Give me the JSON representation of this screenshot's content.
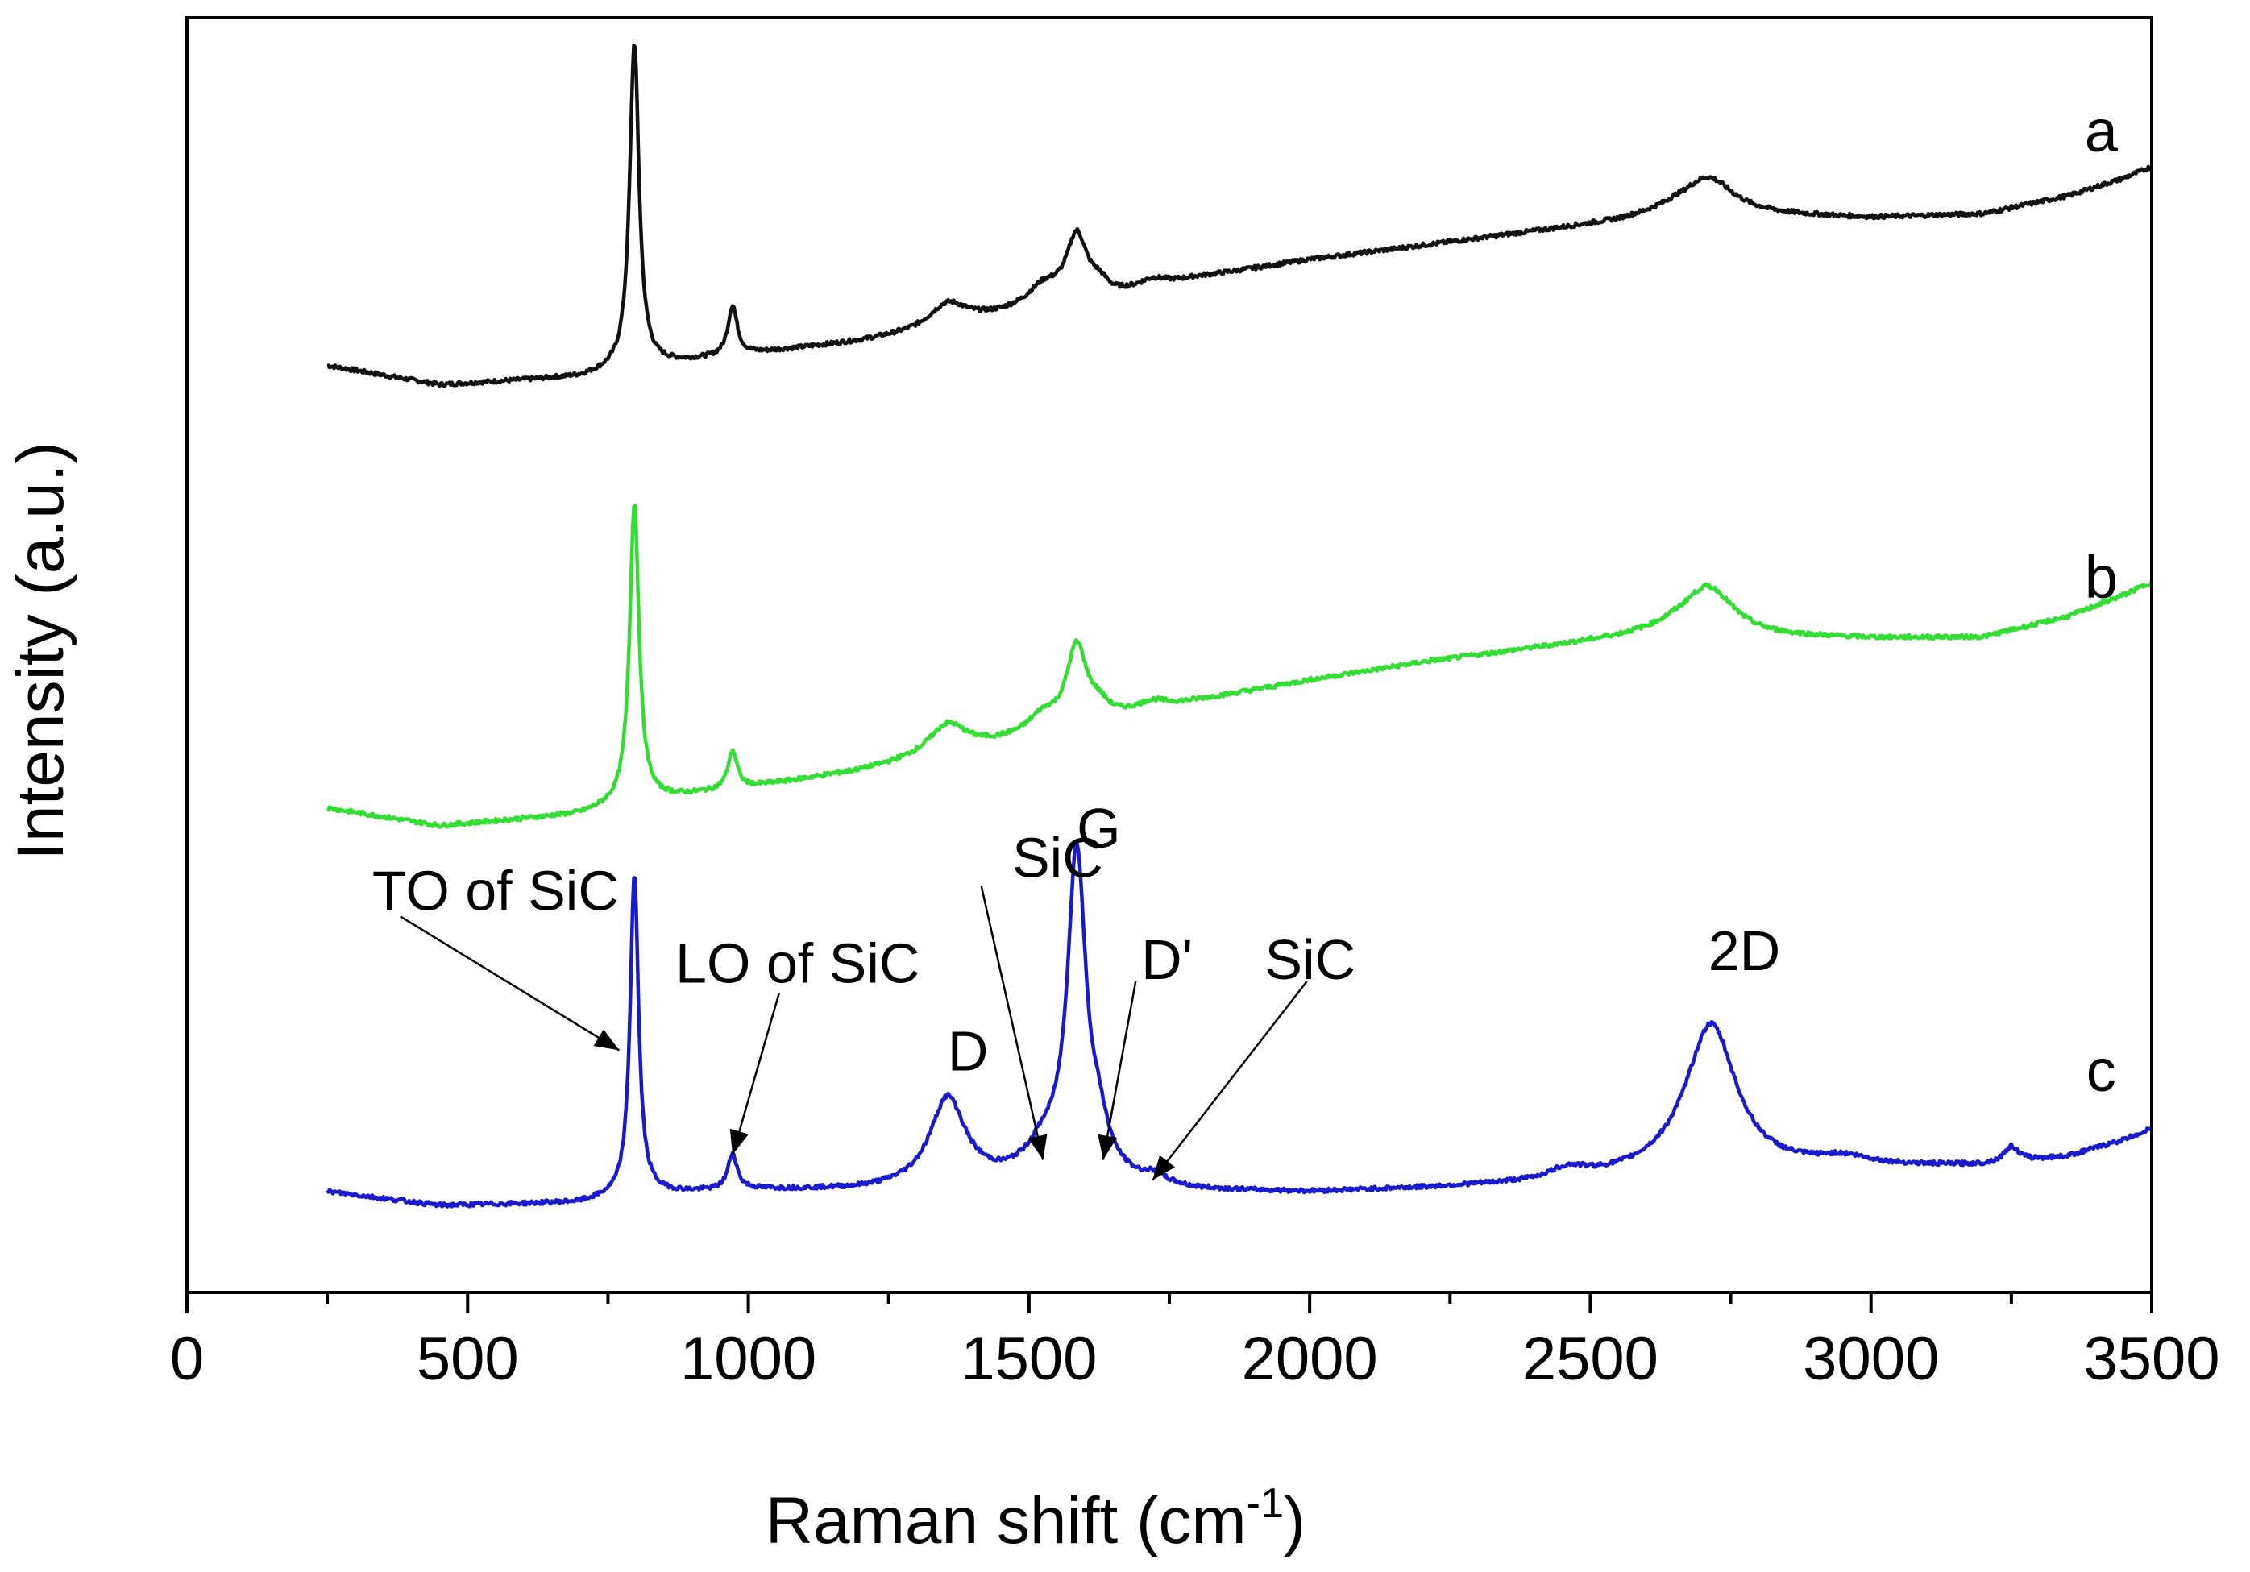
{
  "chart_data": {
    "type": "line",
    "title": "",
    "xlabel": "Raman shift (cm",
    "xlabel_sup": "-1",
    "xlabel_close": ")",
    "ylabel": "Intensity (a.u.)",
    "xlim": [
      0,
      3500
    ],
    "ylim": [
      0,
      100
    ],
    "x_ticks": [
      0,
      500,
      1000,
      1500,
      2000,
      2500,
      3000,
      3500
    ],
    "x_tick_labels": [
      "0",
      "500",
      "1000",
      "1500",
      "2000",
      "2500",
      "3000",
      "3500"
    ],
    "y_ticks_shown": false,
    "grid": false,
    "series": [
      {
        "name": "a",
        "color": "#111111",
        "baseline": [
          [
            250,
            72.7
          ],
          [
            450,
            71.2
          ],
          [
            700,
            71.8
          ],
          [
            790,
            72.5
          ],
          [
            1000,
            73.6
          ],
          [
            1200,
            74.6
          ],
          [
            1300,
            75.3
          ],
          [
            1450,
            76.7
          ],
          [
            1500,
            77.3
          ],
          [
            1550,
            77.8
          ],
          [
            1650,
            78.1
          ],
          [
            1700,
            78.6
          ],
          [
            1800,
            79.6
          ],
          [
            2000,
            81.0
          ],
          [
            2200,
            82.1
          ],
          [
            2400,
            83.2
          ],
          [
            2550,
            84.0
          ],
          [
            2650,
            84.8
          ],
          [
            2800,
            84.5
          ],
          [
            3000,
            84.3
          ],
          [
            3200,
            84.6
          ],
          [
            3350,
            86.0
          ],
          [
            3450,
            87.4
          ],
          [
            3500,
            88.3
          ]
        ],
        "peaks": [
          {
            "center": 797,
            "height": 25.5,
            "width": 10
          },
          {
            "center": 972,
            "height": 3.9,
            "width": 10
          },
          {
            "center": 1355,
            "height": 1.8,
            "width": 40
          },
          {
            "center": 1525,
            "height": 1.2,
            "width": 30
          },
          {
            "center": 1585,
            "height": 4.9,
            "width": 22
          },
          {
            "center": 1625,
            "height": 0.9,
            "width": 20
          },
          {
            "center": 1720,
            "height": 0.6,
            "width": 30
          },
          {
            "center": 2710,
            "height": 2.8,
            "width": 55
          }
        ]
      },
      {
        "name": "b",
        "color": "#33dd33",
        "baseline": [
          [
            250,
            38.0
          ],
          [
            450,
            36.6
          ],
          [
            700,
            37.5
          ],
          [
            790,
            38.4
          ],
          [
            1000,
            39.6
          ],
          [
            1200,
            40.9
          ],
          [
            1300,
            41.8
          ],
          [
            1450,
            43.1
          ],
          [
            1500,
            43.6
          ],
          [
            1550,
            44.0
          ],
          [
            1650,
            45.0
          ],
          [
            1700,
            45.5
          ],
          [
            1800,
            46.4
          ],
          [
            2000,
            48.0
          ],
          [
            2200,
            49.4
          ],
          [
            2400,
            50.5
          ],
          [
            2550,
            51.3
          ],
          [
            2650,
            51.9
          ],
          [
            2800,
            51.4
          ],
          [
            3000,
            51.3
          ],
          [
            3200,
            51.4
          ],
          [
            3350,
            53.0
          ],
          [
            3450,
            54.7
          ],
          [
            3500,
            55.7
          ]
        ],
        "peaks": [
          {
            "center": 797,
            "height": 23.5,
            "width": 10
          },
          {
            "center": 972,
            "height": 3.0,
            "width": 10
          },
          {
            "center": 1355,
            "height": 2.3,
            "width": 40
          },
          {
            "center": 1525,
            "height": 1.2,
            "width": 30
          },
          {
            "center": 1585,
            "height": 6.2,
            "width": 22
          },
          {
            "center": 1625,
            "height": 0.9,
            "width": 20
          },
          {
            "center": 1720,
            "height": 0.6,
            "width": 30
          },
          {
            "center": 2710,
            "height": 3.7,
            "width": 55
          }
        ]
      },
      {
        "name": "c",
        "color": "#1a1acc",
        "baseline": [
          [
            250,
            7.9
          ],
          [
            450,
            6.8
          ],
          [
            700,
            7.0
          ],
          [
            790,
            7.6
          ],
          [
            1000,
            8.0
          ],
          [
            1200,
            8.0
          ],
          [
            1300,
            8.2
          ],
          [
            1450,
            8.7
          ],
          [
            1500,
            9.2
          ],
          [
            1550,
            9.6
          ],
          [
            1650,
            8.8
          ],
          [
            1700,
            8.1
          ],
          [
            1800,
            7.9
          ],
          [
            2000,
            7.8
          ],
          [
            2200,
            8.1
          ],
          [
            2400,
            8.5
          ],
          [
            2550,
            9.0
          ],
          [
            2650,
            9.4
          ],
          [
            2800,
            9.4
          ],
          [
            3000,
            9.7
          ],
          [
            3200,
            9.9
          ],
          [
            3350,
            10.6
          ],
          [
            3450,
            11.9
          ],
          [
            3500,
            12.8
          ]
        ],
        "peaks": [
          {
            "center": 797,
            "height": 25.2,
            "width": 9
          },
          {
            "center": 972,
            "height": 2.8,
            "width": 10
          },
          {
            "center": 1355,
            "height": 6.8,
            "width": 38
          },
          {
            "center": 1525,
            "height": 1.4,
            "width": 30
          },
          {
            "center": 1585,
            "height": 25.0,
            "width": 20
          },
          {
            "center": 1625,
            "height": 2.5,
            "width": 18
          },
          {
            "center": 1720,
            "height": 0.8,
            "width": 30
          },
          {
            "center": 2460,
            "height": 0.8,
            "width": 40
          },
          {
            "center": 2715,
            "height": 11.6,
            "width": 55
          },
          {
            "center": 2950,
            "height": 0.7,
            "width": 60
          },
          {
            "center": 3250,
            "height": 1.2,
            "width": 15
          }
        ]
      }
    ],
    "series_labels": [
      {
        "text": "a",
        "x": 3410,
        "y": 89.5
      },
      {
        "text": "b",
        "x": 3410,
        "y": 54.5
      },
      {
        "text": "c",
        "x": 3410,
        "y": 15.8
      }
    ],
    "annotations": [
      {
        "text": "TO of SiC",
        "x": 330,
        "y": 30.0,
        "arrow_from": [
          380,
          29.5
        ],
        "arrow_to": [
          770,
          19.0
        ]
      },
      {
        "text": "LO of SiC",
        "x": 870,
        "y": 24.3,
        "arrow_from": [
          1055,
          23.5
        ],
        "arrow_to": [
          972,
          10.8
        ]
      },
      {
        "text": "D",
        "x": 1355,
        "y": 17.4
      },
      {
        "text": "SiC",
        "x": 1470,
        "y": 32.6,
        "arrow_from": [
          1415,
          31.9
        ],
        "arrow_to": [
          1525,
          10.4
        ]
      },
      {
        "text": "G",
        "x": 1585,
        "y": 34.9
      },
      {
        "text": "D'",
        "x": 1700,
        "y": 24.6,
        "arrow_from": [
          1690,
          24.4
        ],
        "arrow_to": [
          1632,
          10.4
        ]
      },
      {
        "text": "SiC",
        "x": 1920,
        "y": 24.6,
        "arrow_from": [
          1995,
          24.4
        ],
        "arrow_to": [
          1720,
          8.8
        ]
      },
      {
        "text": "2D",
        "x": 2710,
        "y": 25.3
      }
    ]
  }
}
